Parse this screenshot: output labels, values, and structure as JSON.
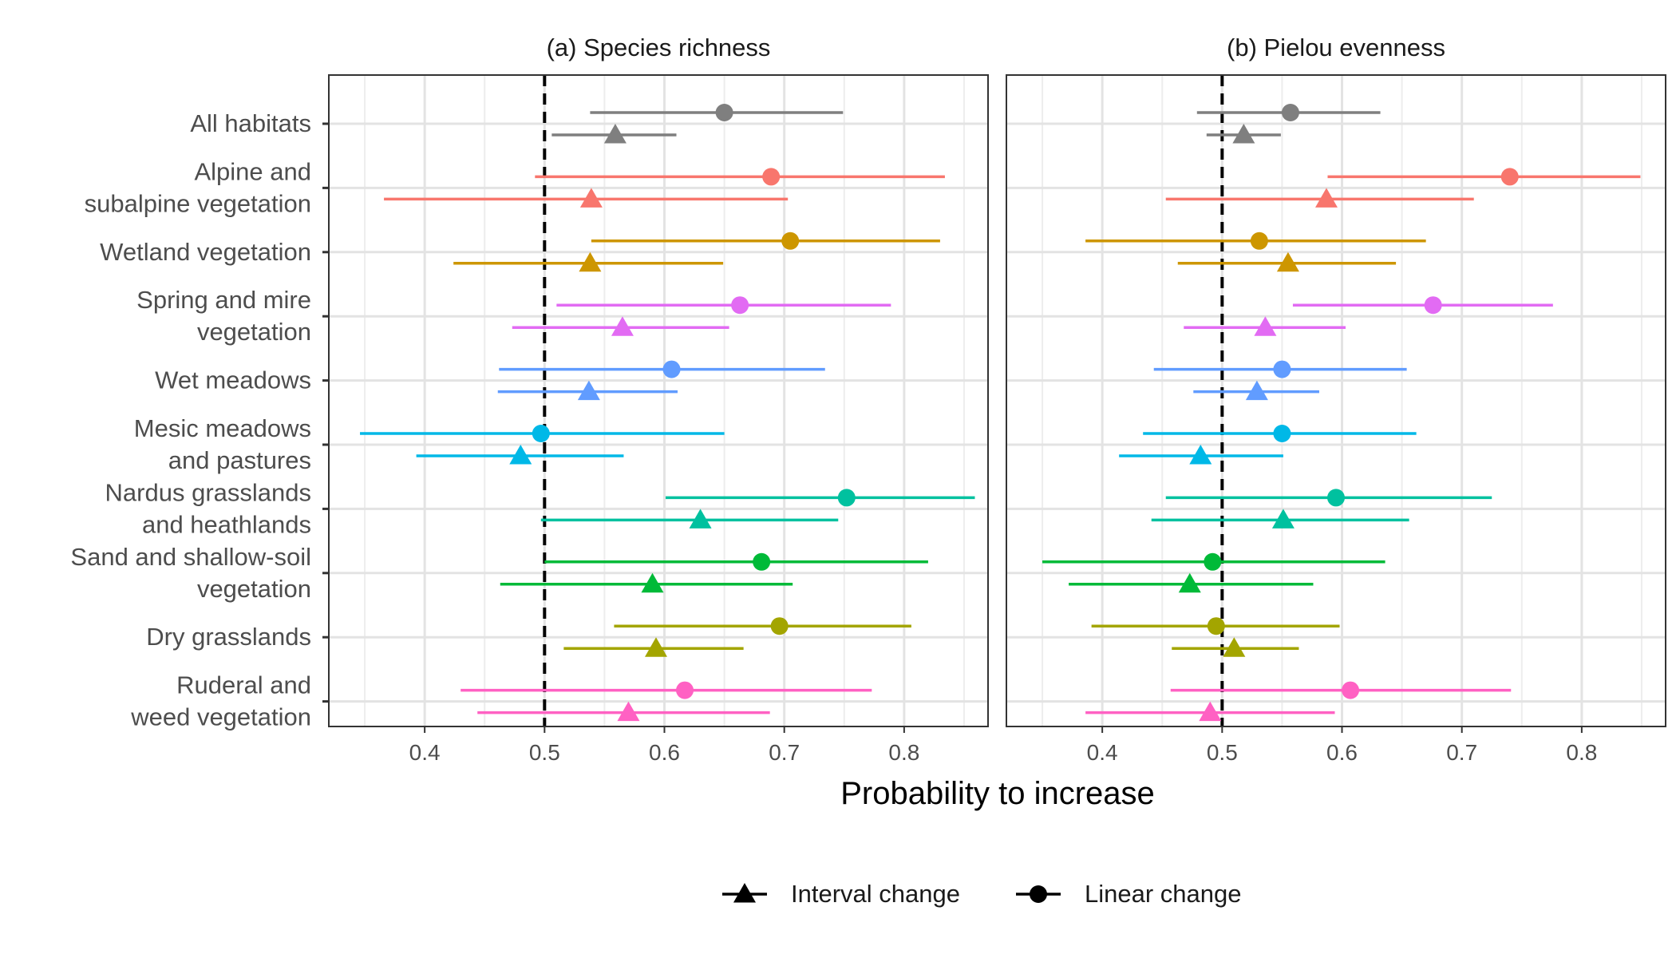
{
  "chart_data": {
    "type": "scatter",
    "subtype": "point-range (forest plot)",
    "xlabel": "Probability to increase",
    "reference_line_x": 0.5,
    "xlim": [
      0.32,
      0.87
    ],
    "xticks": [
      0.4,
      0.5,
      0.6,
      0.7,
      0.8
    ],
    "xtick_labels": [
      "0.4",
      "0.5",
      "0.6",
      "0.7",
      "0.8"
    ],
    "grid": true,
    "legend": {
      "position": "bottom",
      "entries": [
        {
          "label": "Interval change",
          "shape": "triangle"
        },
        {
          "label": "Linear change",
          "shape": "circle"
        }
      ]
    },
    "categories": [
      {
        "label": [
          "All habitats"
        ],
        "color": "#7F7F7F"
      },
      {
        "label": [
          "Alpine and",
          "subalpine vegetation"
        ],
        "color": "#F8766D"
      },
      {
        "label": [
          "Wetland vegetation"
        ],
        "color": "#CD9600"
      },
      {
        "label": [
          "Spring and mire",
          "vegetation"
        ],
        "color": "#E26BF3"
      },
      {
        "label": [
          "Wet meadows"
        ],
        "color": "#619CFF"
      },
      {
        "label": [
          "Mesic meadows",
          "and pastures"
        ],
        "color": "#00B8E7"
      },
      {
        "label": [
          "Nardus grasslands",
          "and heathlands"
        ],
        "color": "#00C19F"
      },
      {
        "label": [
          "Sand and shallow-soil",
          "vegetation"
        ],
        "color": "#00BA38"
      },
      {
        "label": [
          "Dry grasslands"
        ],
        "color": "#A3A500"
      },
      {
        "label": [
          "Ruderal and",
          "weed vegetation"
        ],
        "color": "#FF61C3"
      }
    ],
    "panels": [
      {
        "title": "(a) Species richness",
        "linear": [
          {
            "est": 0.65,
            "lo": 0.538,
            "hi": 0.749
          },
          {
            "est": 0.689,
            "lo": 0.492,
            "hi": 0.834
          },
          {
            "est": 0.705,
            "lo": 0.539,
            "hi": 0.83
          },
          {
            "est": 0.663,
            "lo": 0.51,
            "hi": 0.789
          },
          {
            "est": 0.606,
            "lo": 0.462,
            "hi": 0.734
          },
          {
            "est": 0.497,
            "lo": 0.346,
            "hi": 0.65
          },
          {
            "est": 0.752,
            "lo": 0.601,
            "hi": 0.859
          },
          {
            "est": 0.681,
            "lo": 0.5,
            "hi": 0.82
          },
          {
            "est": 0.696,
            "lo": 0.558,
            "hi": 0.806
          },
          {
            "est": 0.617,
            "lo": 0.43,
            "hi": 0.773
          }
        ],
        "interval": [
          {
            "est": 0.559,
            "lo": 0.506,
            "hi": 0.61
          },
          {
            "est": 0.539,
            "lo": 0.366,
            "hi": 0.703
          },
          {
            "est": 0.538,
            "lo": 0.424,
            "hi": 0.649
          },
          {
            "est": 0.565,
            "lo": 0.473,
            "hi": 0.654
          },
          {
            "est": 0.537,
            "lo": 0.461,
            "hi": 0.611
          },
          {
            "est": 0.48,
            "lo": 0.393,
            "hi": 0.566
          },
          {
            "est": 0.63,
            "lo": 0.497,
            "hi": 0.745
          },
          {
            "est": 0.59,
            "lo": 0.463,
            "hi": 0.707
          },
          {
            "est": 0.593,
            "lo": 0.516,
            "hi": 0.666
          },
          {
            "est": 0.57,
            "lo": 0.444,
            "hi": 0.688
          }
        ]
      },
      {
        "title": "(b) Pielou evenness",
        "linear": [
          {
            "est": 0.557,
            "lo": 0.479,
            "hi": 0.632
          },
          {
            "est": 0.74,
            "lo": 0.588,
            "hi": 0.849
          },
          {
            "est": 0.531,
            "lo": 0.386,
            "hi": 0.67
          },
          {
            "est": 0.676,
            "lo": 0.559,
            "hi": 0.776
          },
          {
            "est": 0.55,
            "lo": 0.443,
            "hi": 0.654
          },
          {
            "est": 0.55,
            "lo": 0.434,
            "hi": 0.662
          },
          {
            "est": 0.595,
            "lo": 0.453,
            "hi": 0.725
          },
          {
            "est": 0.492,
            "lo": 0.35,
            "hi": 0.636
          },
          {
            "est": 0.495,
            "lo": 0.391,
            "hi": 0.598
          },
          {
            "est": 0.607,
            "lo": 0.457,
            "hi": 0.741
          }
        ],
        "interval": [
          {
            "est": 0.518,
            "lo": 0.487,
            "hi": 0.549
          },
          {
            "est": 0.587,
            "lo": 0.453,
            "hi": 0.71
          },
          {
            "est": 0.555,
            "lo": 0.463,
            "hi": 0.645
          },
          {
            "est": 0.536,
            "lo": 0.468,
            "hi": 0.603
          },
          {
            "est": 0.529,
            "lo": 0.476,
            "hi": 0.581
          },
          {
            "est": 0.482,
            "lo": 0.414,
            "hi": 0.551
          },
          {
            "est": 0.551,
            "lo": 0.441,
            "hi": 0.656
          },
          {
            "est": 0.473,
            "lo": 0.372,
            "hi": 0.576
          },
          {
            "est": 0.51,
            "lo": 0.458,
            "hi": 0.564
          },
          {
            "est": 0.49,
            "lo": 0.386,
            "hi": 0.594
          }
        ]
      }
    ]
  }
}
